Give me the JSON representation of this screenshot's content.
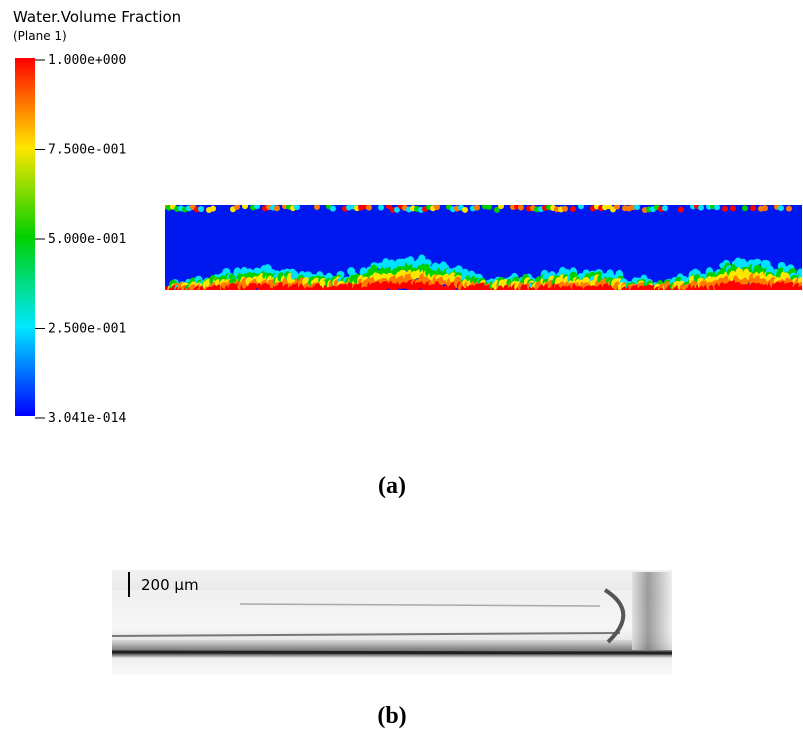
{
  "legend": {
    "title": "Water.Volume Fraction",
    "subtitle": "(Plane 1)",
    "ticks": [
      "1.000e+000",
      "7.500e-001",
      "5.000e-001",
      "2.500e-001",
      "3.041e-014"
    ]
  },
  "panels": [
    {
      "label": "(a)"
    },
    {
      "label": "(b)",
      "scale_bar": "200 μm"
    }
  ]
}
